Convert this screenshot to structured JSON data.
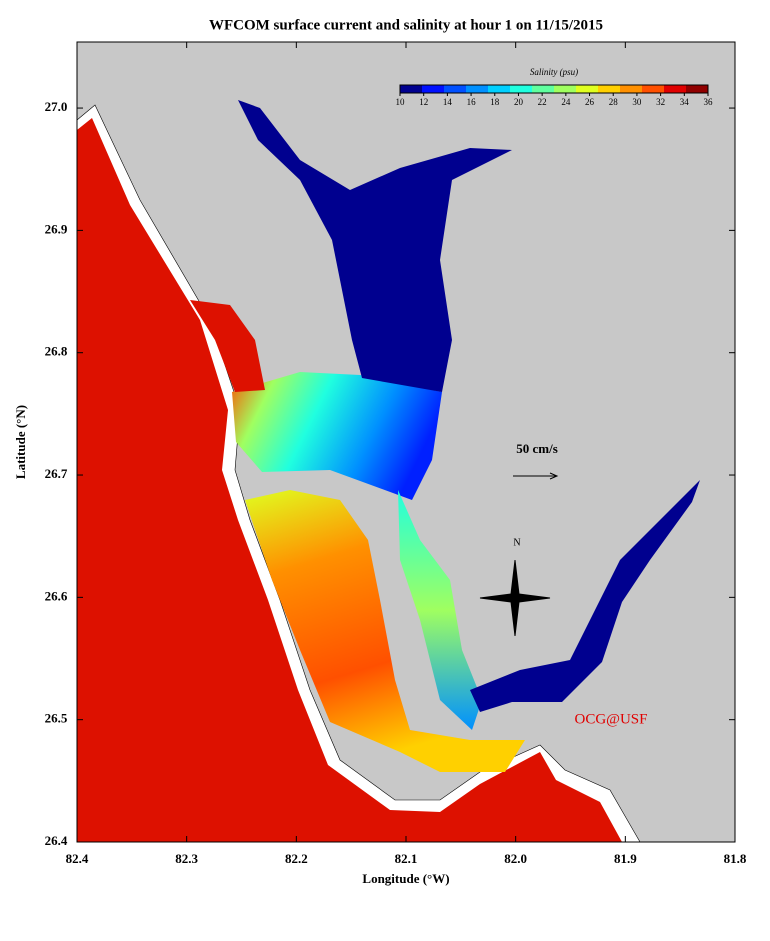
{
  "map": {
    "title": "WFCOM surface current and salinity at hour 1 on 11/15/2015",
    "xlabel": "Longitude (°W)",
    "ylabel": "Latitude (°N)",
    "xlim": [
      82.4,
      81.8
    ],
    "ylim": [
      26.4,
      27.054
    ],
    "xticks": [
      82.4,
      82.3,
      82.2,
      82.1,
      {
        "value": 82,
        "label": "82.0"
      },
      81.9,
      81.8
    ],
    "yticks": [
      26.4,
      26.5,
      26.6,
      26.7,
      26.8,
      26.9,
      {
        "value": 27,
        "label": "27.0"
      }
    ],
    "colorbar": {
      "label": "Salinity (psu)",
      "lim": [
        10,
        36
      ],
      "ticks": [
        10,
        12,
        14,
        16,
        18,
        20,
        22,
        24,
        26,
        28,
        30,
        32,
        34,
        36
      ],
      "colors": [
        "#00008f",
        "#0010ff",
        "#0050ff",
        "#0090ff",
        "#00d0ff",
        "#20ffdf",
        "#60ff9f",
        "#a0ff60",
        "#e0ff20",
        "#ffd000",
        "#ff9000",
        "#ff5000",
        "#e00000",
        "#900000"
      ]
    },
    "scale_label": "50 cm/s",
    "compass_label": "N",
    "credit": "OCG@USF"
  }
}
